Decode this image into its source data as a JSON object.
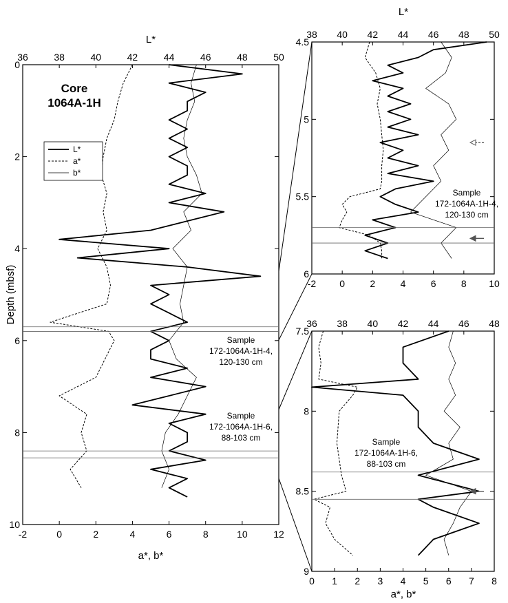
{
  "chart_data": [
    {
      "type": "line",
      "panel": "main",
      "core_label": [
        "Core",
        "1064A-1H"
      ],
      "top_axis_label": "L*",
      "top_axis_range": [
        36,
        50
      ],
      "top_ticks": [
        36,
        38,
        40,
        42,
        44,
        46,
        48,
        50
      ],
      "bottom_axis_label": "a*, b*",
      "bottom_axis_range": [
        -2,
        12
      ],
      "bottom_ticks": [
        -2,
        0,
        2,
        4,
        6,
        8,
        10,
        12
      ],
      "ylabel": "Depth (mbsf)",
      "ylim": [
        0,
        10
      ],
      "y_ticks": [
        0,
        2,
        4,
        6,
        8,
        10
      ],
      "y_reversed": true,
      "legend": {
        "placement": "upper-left",
        "entries": [
          {
            "name": "L*",
            "style": "solid-thick"
          },
          {
            "name": "a*",
            "style": "dashed"
          },
          {
            "name": "b*",
            "style": "solid-thin"
          }
        ]
      },
      "series": [
        {
          "name": "L*",
          "axis": "top",
          "depth": [
            0.0,
            0.2,
            0.4,
            0.6,
            0.8,
            1.0,
            1.2,
            1.4,
            1.6,
            1.8,
            2.0,
            2.2,
            2.4,
            2.6,
            2.8,
            3.0,
            3.2,
            3.4,
            3.6,
            3.8,
            4.0,
            4.2,
            4.4,
            4.6,
            4.8,
            5.0,
            5.2,
            5.4,
            5.6,
            5.8,
            6.0,
            6.2,
            6.4,
            6.6,
            6.8,
            7.0,
            7.2,
            7.4,
            7.6,
            7.8,
            8.0,
            8.2,
            8.4,
            8.6,
            8.8,
            9.0,
            9.2,
            9.4
          ],
          "values": [
            44,
            48,
            44,
            46,
            45,
            45,
            44,
            45,
            44,
            45,
            44,
            45,
            45,
            44,
            46,
            44,
            47,
            45,
            43,
            38,
            44,
            39,
            45,
            49,
            43,
            44,
            43,
            44,
            45,
            43,
            44,
            43,
            43,
            45,
            43,
            46,
            44,
            42,
            46,
            44,
            45,
            45,
            44,
            46,
            43,
            45,
            44,
            45
          ]
        },
        {
          "name": "a*",
          "axis": "bottom",
          "depth": [
            0.0,
            0.4,
            0.8,
            1.2,
            1.6,
            2.0,
            2.4,
            2.8,
            3.2,
            3.6,
            4.0,
            4.4,
            4.8,
            5.2,
            5.6,
            5.8,
            6.0,
            6.4,
            6.8,
            7.2,
            7.6,
            8.0,
            8.4,
            8.8,
            9.2
          ],
          "values": [
            4.0,
            3.5,
            3.2,
            3.0,
            2.6,
            2.4,
            2.3,
            2.6,
            2.4,
            2.6,
            2.1,
            2.6,
            2.8,
            2.6,
            -0.5,
            2.7,
            3.0,
            2.5,
            2.0,
            0.0,
            1.5,
            1.2,
            1.5,
            0.6,
            1.2
          ]
        },
        {
          "name": "b*",
          "axis": "bottom",
          "depth": [
            0.0,
            0.4,
            0.8,
            1.2,
            1.6,
            2.0,
            2.4,
            2.8,
            3.2,
            3.6,
            4.0,
            4.4,
            4.8,
            5.2,
            5.6,
            6.0,
            6.4,
            6.8,
            7.2,
            7.6,
            8.0,
            8.4,
            8.8,
            9.2
          ],
          "values": [
            7.5,
            7.2,
            7.4,
            7.0,
            6.8,
            7.0,
            7.5,
            7.8,
            6.8,
            7.2,
            6.2,
            7.0,
            6.8,
            6.6,
            6.8,
            6.0,
            6.4,
            7.5,
            7.0,
            6.5,
            5.8,
            5.6,
            6.0,
            5.6
          ]
        }
      ],
      "sample_lines": [
        5.7,
        5.8,
        8.4,
        8.55
      ],
      "annotations": [
        {
          "lines": [
            "Sample",
            "172-1064A-1H-4,",
            "120-130 cm"
          ],
          "depth": 6.2
        },
        {
          "lines": [
            "Sample",
            "172-1064A-1H-6,",
            "88-103 cm"
          ],
          "depth": 7.8
        }
      ]
    },
    {
      "type": "line",
      "panel": "inset-upper",
      "top_axis_label": "L*",
      "top_axis_range": [
        38,
        50
      ],
      "top_ticks": [
        38,
        40,
        42,
        44,
        46,
        48,
        50
      ],
      "bottom_axis_range": [
        -2,
        10
      ],
      "bottom_ticks": [
        -2,
        0,
        2,
        4,
        6,
        8,
        10
      ],
      "ylim": [
        4.5,
        6
      ],
      "y_ticks": [
        4.5,
        5,
        5.5,
        6
      ],
      "y_reversed": true,
      "series": [
        {
          "name": "L*",
          "axis": "top",
          "depth": [
            4.5,
            4.55,
            4.6,
            4.65,
            4.7,
            4.75,
            4.8,
            4.85,
            4.9,
            4.95,
            5.0,
            5.05,
            5.1,
            5.15,
            5.2,
            5.25,
            5.3,
            5.35,
            5.4,
            5.45,
            5.5,
            5.55,
            5.6,
            5.65,
            5.7,
            5.75,
            5.8,
            5.85,
            5.9
          ],
          "values": [
            49.5,
            46,
            45,
            43,
            44,
            42,
            44,
            43,
            44.5,
            43,
            44.5,
            43,
            45,
            42.5,
            44,
            43,
            45,
            43,
            46,
            43.5,
            42.5,
            43.5,
            45,
            42,
            43.5,
            41.5,
            43,
            41.5,
            43
          ]
        },
        {
          "name": "a*",
          "axis": "bottom",
          "depth": [
            4.5,
            4.6,
            4.7,
            4.8,
            4.9,
            5.0,
            5.1,
            5.2,
            5.3,
            5.4,
            5.45,
            5.5,
            5.55,
            5.6,
            5.65,
            5.7,
            5.75,
            5.8,
            5.85,
            5.9
          ],
          "values": [
            1.8,
            1.5,
            2.2,
            2.5,
            2.3,
            2.5,
            2.6,
            2.7,
            2.6,
            2.6,
            2.5,
            0.5,
            0.0,
            0.3,
            0.0,
            -0.2,
            1.8,
            2.5,
            2.6,
            2.6
          ]
        },
        {
          "name": "b*",
          "axis": "bottom",
          "depth": [
            4.5,
            4.6,
            4.7,
            4.8,
            4.9,
            5.0,
            5.1,
            5.2,
            5.3,
            5.4,
            5.5,
            5.6,
            5.7,
            5.8,
            5.9
          ],
          "values": [
            6.5,
            7.2,
            6.8,
            5.5,
            7.0,
            7.5,
            6.5,
            7.0,
            6.0,
            6.5,
            5.5,
            4.5,
            7.5,
            6.5,
            7.2
          ]
        }
      ],
      "sample_lines": [
        5.7,
        5.8
      ],
      "arrows": [
        {
          "depth": 5.15,
          "style": "dashed"
        },
        {
          "depth": 5.77,
          "style": "solid"
        }
      ],
      "annotations": [
        {
          "lines": [
            "Sample",
            "172-1064A-1H-4,",
            "120-130 cm"
          ],
          "depth": 5.55
        }
      ]
    },
    {
      "type": "line",
      "panel": "inset-lower",
      "top_axis_range": [
        36,
        48
      ],
      "top_ticks": [
        36,
        38,
        40,
        42,
        44,
        46,
        48
      ],
      "bottom_axis_label": "a*, b*",
      "bottom_axis_range": [
        0,
        8
      ],
      "bottom_ticks": [
        0,
        1,
        2,
        3,
        4,
        5,
        6,
        7,
        8
      ],
      "ylim": [
        7.5,
        9
      ],
      "y_ticks": [
        7.5,
        8,
        8.5,
        9
      ],
      "y_reversed": true,
      "series": [
        {
          "name": "L*",
          "axis": "top",
          "depth": [
            7.5,
            7.6,
            7.7,
            7.8,
            7.85,
            7.9,
            8.0,
            8.1,
            8.2,
            8.3,
            8.4,
            8.5,
            8.55,
            8.6,
            8.7,
            8.8,
            8.9
          ],
          "values": [
            45,
            42,
            42,
            43,
            36,
            42,
            43,
            43,
            44,
            47,
            43,
            47,
            43,
            44,
            47,
            44,
            43
          ]
        },
        {
          "name": "a*",
          "axis": "bottom",
          "depth": [
            7.5,
            7.6,
            7.7,
            7.8,
            7.85,
            7.9,
            8.0,
            8.2,
            8.4,
            8.5,
            8.55,
            8.6,
            8.7,
            8.8,
            8.9
          ],
          "values": [
            0.5,
            0.3,
            0.4,
            0.3,
            2.0,
            1.8,
            1.2,
            1.1,
            1.3,
            1.5,
            0.1,
            0.8,
            0.6,
            1.0,
            1.8
          ]
        },
        {
          "name": "b*",
          "axis": "bottom",
          "depth": [
            7.5,
            7.6,
            7.7,
            7.8,
            7.9,
            8.0,
            8.1,
            8.2,
            8.3,
            8.4,
            8.5,
            8.6,
            8.7,
            8.8,
            8.9
          ],
          "values": [
            6.2,
            6.0,
            6.3,
            6.0,
            6.3,
            5.8,
            6.5,
            6.0,
            6.2,
            5.0,
            7.0,
            6.5,
            6.2,
            5.8,
            6.0
          ]
        }
      ],
      "sample_lines": [
        8.38,
        8.55
      ],
      "arrows": [
        {
          "depth": 8.5,
          "style": "solid"
        }
      ],
      "annotations": [
        {
          "lines": [
            "Sample",
            "172-1064A-1H-6,",
            "88-103 cm"
          ],
          "depth": 8.25
        }
      ]
    }
  ]
}
